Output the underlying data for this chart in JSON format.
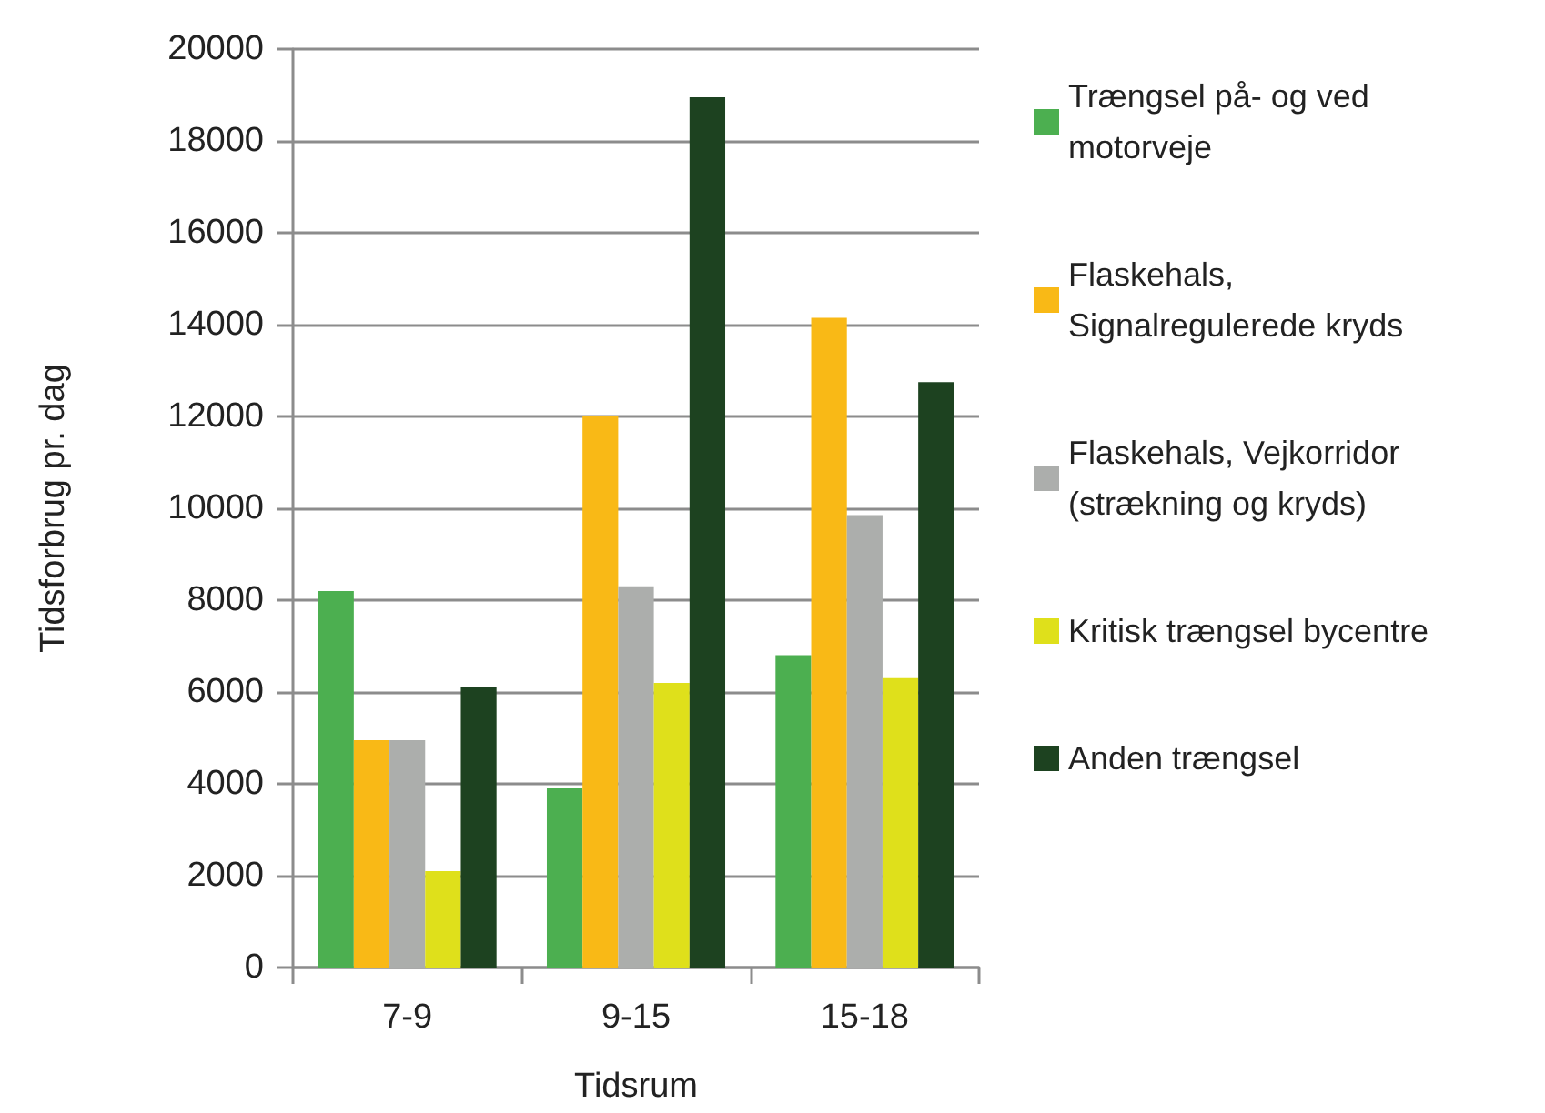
{
  "chart_data": {
    "type": "bar",
    "xlabel": "Tidsrum",
    "ylabel": "Tidsforbrug pr. dag",
    "categories": [
      "7-9",
      "9-15",
      "15-18"
    ],
    "series": [
      {
        "name": "Trængsel på- og ved motorveje",
        "color": "#4caf50",
        "values": [
          8200,
          3900,
          6800
        ]
      },
      {
        "name": "Flaskehals, Signalregulerede kryds",
        "color": "#f9b916",
        "values": [
          4950,
          12000,
          14150
        ]
      },
      {
        "name": "Flaskehals, Vejkorridor (strækning og kryds)",
        "color": "#acaeac",
        "values": [
          4950,
          8300,
          9850
        ]
      },
      {
        "name": "Kritisk trængsel bycentre",
        "color": "#dfe01b",
        "values": [
          2100,
          6200,
          6300
        ]
      },
      {
        "name": "Anden trængsel",
        "color": "#1d4220",
        "values": [
          6100,
          18950,
          12750
        ]
      }
    ],
    "ylim": [
      0,
      20000
    ],
    "yticks": [
      0,
      2000,
      4000,
      6000,
      8000,
      10000,
      12000,
      14000,
      16000,
      18000,
      20000
    ],
    "grid": "y",
    "legend": "right"
  }
}
